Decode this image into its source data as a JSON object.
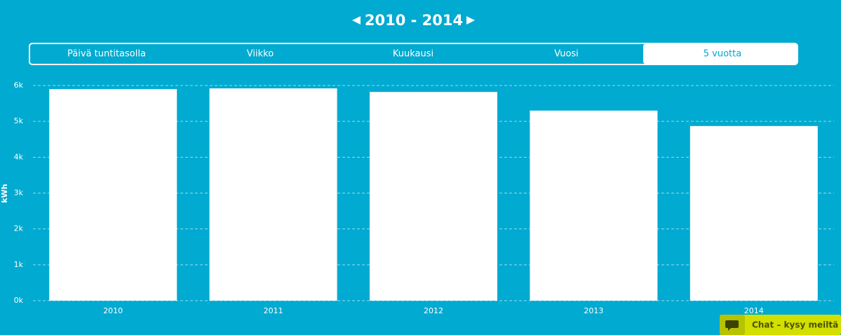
{
  "header": {
    "title": "2010 - 2014"
  },
  "tabs": [
    "Päivä tuntitasolla",
    "Viikko",
    "Kuukausi",
    "Vuosi",
    "5 vuotta"
  ],
  "active_tab": 4,
  "chart_data": {
    "type": "bar",
    "y_label": "kWh",
    "categories": [
      "2010",
      "2011",
      "2012",
      "2013",
      "2014"
    ],
    "values": [
      5900,
      5920,
      5820,
      5300,
      4870
    ],
    "color": "#ffffff",
    "ylim": [
      0,
      6000
    ],
    "yticks": [
      {
        "value": 0,
        "label": "0k"
      },
      {
        "value": 1000,
        "label": "1k"
      },
      {
        "value": 2000,
        "label": "2k"
      },
      {
        "value": 3000,
        "label": "3k"
      },
      {
        "value": 4000,
        "label": "4k"
      },
      {
        "value": 5000,
        "label": "5k"
      },
      {
        "value": 6000,
        "label": "6k"
      }
    ],
    "grid": true
  },
  "chat": {
    "label": "Chat – kysy meiltä"
  }
}
